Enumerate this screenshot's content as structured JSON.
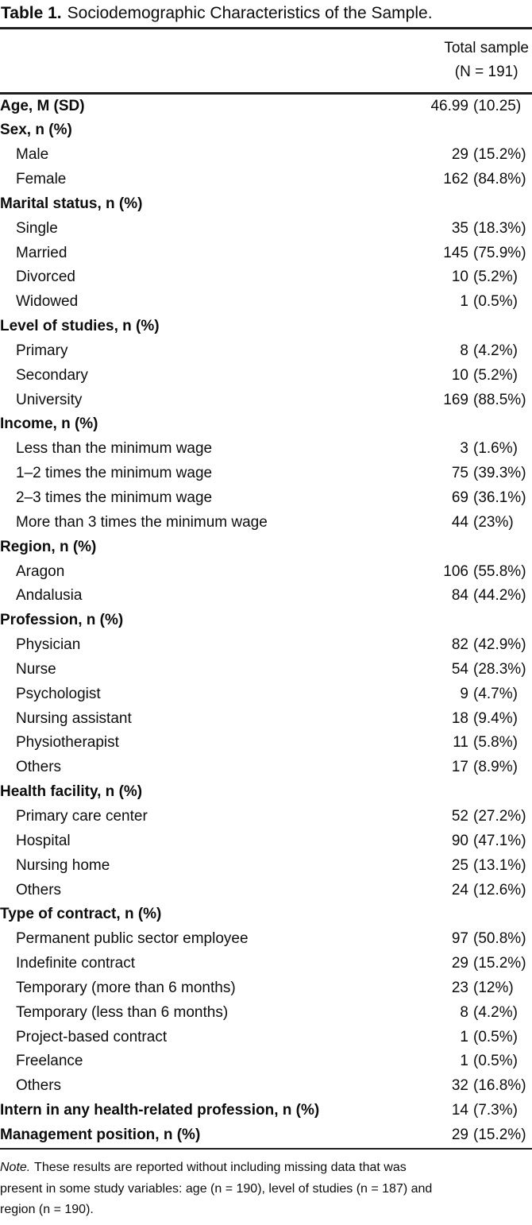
{
  "title": {
    "label": "Table 1.",
    "text": "Sociodemographic Characteristics of the Sample."
  },
  "header": {
    "line1": "Total sample",
    "line2": "(N = 191)"
  },
  "rows": [
    {
      "label": "Age, M (SD)",
      "bold": true,
      "indent": false,
      "count": "46.99",
      "pct": "(10.25)"
    },
    {
      "label": "Sex, n (%)",
      "bold": true,
      "indent": false,
      "count": "",
      "pct": ""
    },
    {
      "label": "Male",
      "bold": false,
      "indent": true,
      "count": "29",
      "pct": "(15.2%)"
    },
    {
      "label": "Female",
      "bold": false,
      "indent": true,
      "count": "162",
      "pct": "(84.8%)"
    },
    {
      "label": "Marital status, n (%)",
      "bold": true,
      "indent": false,
      "count": "",
      "pct": ""
    },
    {
      "label": "Single",
      "bold": false,
      "indent": true,
      "count": "35",
      "pct": "(18.3%)"
    },
    {
      "label": "Married",
      "bold": false,
      "indent": true,
      "count": "145",
      "pct": "(75.9%)"
    },
    {
      "label": "Divorced",
      "bold": false,
      "indent": true,
      "count": "10",
      "pct": "(5.2%)"
    },
    {
      "label": "Widowed",
      "bold": false,
      "indent": true,
      "count": "1",
      "pct": "(0.5%)"
    },
    {
      "label": "Level of studies, n (%)",
      "bold": true,
      "indent": false,
      "count": "",
      "pct": ""
    },
    {
      "label": "Primary",
      "bold": false,
      "indent": true,
      "count": "8",
      "pct": "(4.2%)"
    },
    {
      "label": "Secondary",
      "bold": false,
      "indent": true,
      "count": "10",
      "pct": "(5.2%)"
    },
    {
      "label": "University",
      "bold": false,
      "indent": true,
      "count": "169",
      "pct": "(88.5%)"
    },
    {
      "label": "Income, n (%)",
      "bold": true,
      "indent": false,
      "count": "",
      "pct": ""
    },
    {
      "label": "Less than the minimum wage",
      "bold": false,
      "indent": true,
      "count": "3",
      "pct": "(1.6%)"
    },
    {
      "label": "1–2 times the minimum wage",
      "bold": false,
      "indent": true,
      "count": "75",
      "pct": "(39.3%)"
    },
    {
      "label": "2–3 times the minimum wage",
      "bold": false,
      "indent": true,
      "count": "69",
      "pct": "(36.1%)"
    },
    {
      "label": "More than 3 times the minimum wage",
      "bold": false,
      "indent": true,
      "count": "44",
      "pct": "(23%)"
    },
    {
      "label": "Region, n (%)",
      "bold": true,
      "indent": false,
      "count": "",
      "pct": ""
    },
    {
      "label": "Aragon",
      "bold": false,
      "indent": true,
      "count": "106",
      "pct": "(55.8%)"
    },
    {
      "label": "Andalusia",
      "bold": false,
      "indent": true,
      "count": "84",
      "pct": "(44.2%)"
    },
    {
      "label": "Profession, n (%)",
      "bold": true,
      "indent": false,
      "count": "",
      "pct": ""
    },
    {
      "label": "Physician",
      "bold": false,
      "indent": true,
      "count": "82",
      "pct": "(42.9%)"
    },
    {
      "label": "Nurse",
      "bold": false,
      "indent": true,
      "count": "54",
      "pct": "(28.3%)"
    },
    {
      "label": "Psychologist",
      "bold": false,
      "indent": true,
      "count": "9",
      "pct": "(4.7%)"
    },
    {
      "label": "Nursing assistant",
      "bold": false,
      "indent": true,
      "count": "18",
      "pct": "(9.4%)"
    },
    {
      "label": "Physiotherapist",
      "bold": false,
      "indent": true,
      "count": "11",
      "pct": "(5.8%)"
    },
    {
      "label": "Others",
      "bold": false,
      "indent": true,
      "count": "17",
      "pct": "(8.9%)"
    },
    {
      "label": "Health facility, n (%)",
      "bold": true,
      "indent": false,
      "count": "",
      "pct": ""
    },
    {
      "label": "Primary care center",
      "bold": false,
      "indent": true,
      "count": "52",
      "pct": "(27.2%)"
    },
    {
      "label": "Hospital",
      "bold": false,
      "indent": true,
      "count": "90",
      "pct": "(47.1%)"
    },
    {
      "label": "Nursing home",
      "bold": false,
      "indent": true,
      "count": "25",
      "pct": "(13.1%)"
    },
    {
      "label": "Others",
      "bold": false,
      "indent": true,
      "count": "24",
      "pct": "(12.6%)"
    },
    {
      "label": "Type of contract, n (%)",
      "bold": true,
      "indent": false,
      "count": "",
      "pct": ""
    },
    {
      "label": "Permanent public sector employee",
      "bold": false,
      "indent": true,
      "count": "97",
      "pct": "(50.8%)"
    },
    {
      "label": "Indefinite contract",
      "bold": false,
      "indent": true,
      "count": "29",
      "pct": "(15.2%)"
    },
    {
      "label": "Temporary (more than 6 months)",
      "bold": false,
      "indent": true,
      "count": "23",
      "pct": "(12%)"
    },
    {
      "label": "Temporary (less than 6 months)",
      "bold": false,
      "indent": true,
      "count": "8",
      "pct": "(4.2%)"
    },
    {
      "label": "Project-based contract",
      "bold": false,
      "indent": true,
      "count": "1",
      "pct": "(0.5%)"
    },
    {
      "label": "Freelance",
      "bold": false,
      "indent": true,
      "count": "1",
      "pct": "(0.5%)"
    },
    {
      "label": "Others",
      "bold": false,
      "indent": true,
      "count": "32",
      "pct": "(16.8%)"
    },
    {
      "label": "Intern in any health-related profession, n (%)",
      "bold": true,
      "indent": false,
      "count": "14",
      "pct": "(7.3%)"
    },
    {
      "label": "Management position, n (%)",
      "bold": true,
      "indent": false,
      "count": "29",
      "pct": "(15.2%)"
    }
  ],
  "note": {
    "label": "Note.",
    "line1": "These results are reported without including missing data that was",
    "line2": "present in some study variables: age (n = 190), level of studies (n = 187) and",
    "line3": "region (n = 190)."
  },
  "colors": {
    "text": "#0d0d0d",
    "rule": "#1e1e1e",
    "background": "#ffffff"
  }
}
